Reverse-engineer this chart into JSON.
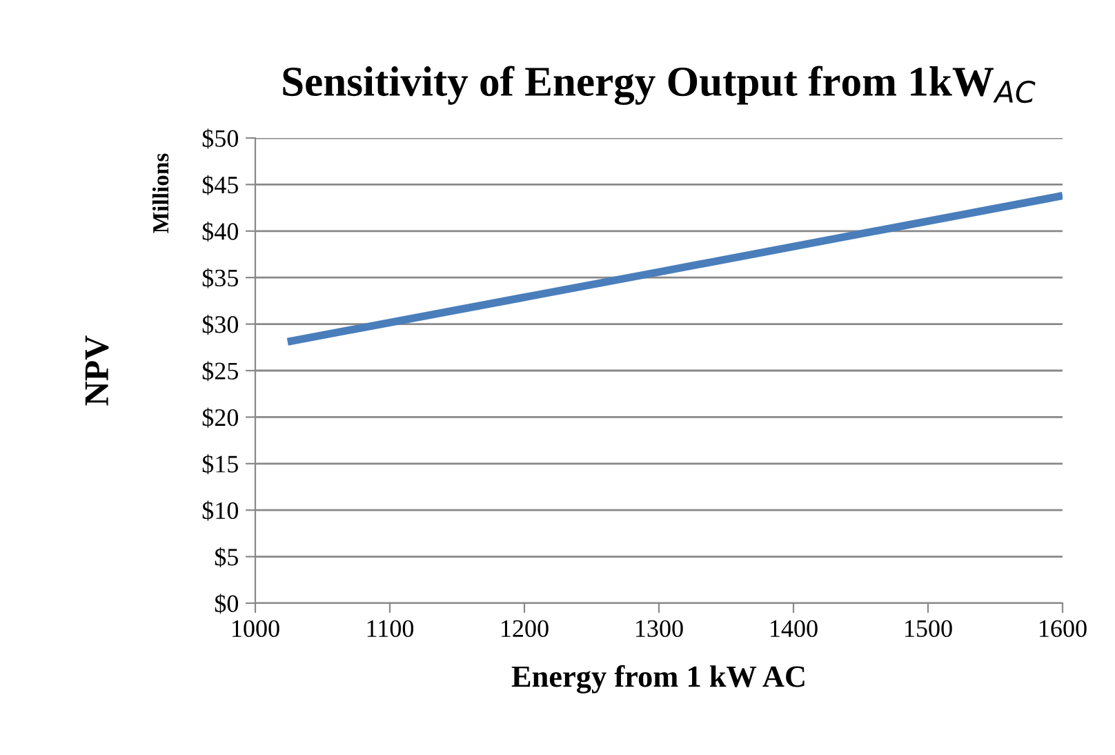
{
  "chart_data": {
    "type": "line",
    "title": "Sensitivity of Energy Output from 1kW$_{AC}$",
    "xlabel": "Energy from 1 kW AC",
    "ylabel": "NPV",
    "annotations": [
      "Millions"
    ],
    "x": [
      1024,
      1300,
      1600
    ],
    "series": [
      {
        "color": "#4a7ebb",
        "values": [
          28.1,
          35.6,
          43.8
        ]
      }
    ],
    "xlim": [
      1000,
      1600
    ],
    "xticks": [
      1000,
      1100,
      1200,
      1300,
      1400,
      1500,
      1600
    ],
    "ylim": [
      0,
      50
    ],
    "yticks": [
      {
        "value": 0,
        "label": "$0"
      },
      {
        "value": 5,
        "label": "$5"
      },
      {
        "value": 10,
        "label": "$10"
      },
      {
        "value": 15,
        "label": "$15"
      },
      {
        "value": 20,
        "label": "$20"
      },
      {
        "value": 25,
        "label": "$25"
      },
      {
        "value": 30,
        "label": "$30"
      },
      {
        "value": 35,
        "label": "$35"
      },
      {
        "value": 40,
        "label": "$40"
      },
      {
        "value": 45,
        "label": "$45"
      },
      {
        "value": 50,
        "label": "$50"
      }
    ],
    "grid": "y",
    "legend": false,
    "marker": "none",
    "line_style": "solid"
  }
}
